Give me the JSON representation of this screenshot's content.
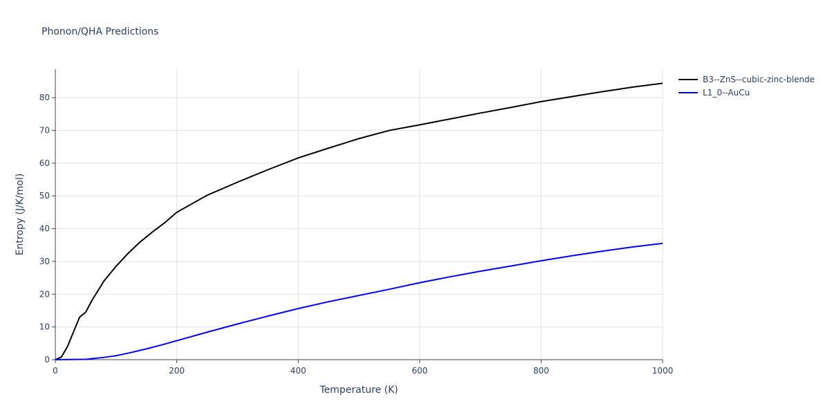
{
  "chart_data": {
    "type": "line",
    "title": "Phonon/QHA Predictions",
    "x_label": "Temperature (K)",
    "y_label": "Entropy (J/K/mol)",
    "xlim": [
      0,
      1000
    ],
    "ylim": [
      0,
      88.7
    ],
    "xticks": [
      0,
      200,
      400,
      600,
      800,
      1000
    ],
    "yticks": [
      0,
      10,
      20,
      30,
      40,
      50,
      60,
      70,
      80
    ],
    "grid": true,
    "legend": "outside-right",
    "series": [
      {
        "name": "B3--ZnS--cubic-zinc-blende",
        "color": "#000000",
        "x": [
          0,
          10,
          20,
          30,
          40,
          50,
          60,
          70,
          80,
          100,
          120,
          140,
          160,
          180,
          200,
          250,
          300,
          350,
          400,
          450,
          500,
          550,
          600,
          650,
          700,
          750,
          800,
          850,
          900,
          950,
          1000
        ],
        "values": [
          0,
          0.8,
          4,
          8.5,
          13,
          14.5,
          18,
          21,
          24,
          28.5,
          32.5,
          36,
          39,
          41.8,
          45,
          50.2,
          54.2,
          58,
          61.6,
          64.6,
          67.5,
          70,
          71.7,
          73.5,
          75.3,
          77,
          78.8,
          80.3,
          81.8,
          83.2,
          84.4
        ]
      },
      {
        "name": "L1_0--AuCu",
        "color": "#0000ff",
        "x": [
          0,
          50,
          80,
          100,
          125,
          150,
          175,
          200,
          250,
          300,
          350,
          400,
          450,
          500,
          550,
          600,
          650,
          700,
          750,
          800,
          850,
          900,
          950,
          1000
        ],
        "values": [
          0,
          0.1,
          0.7,
          1.2,
          2.2,
          3.3,
          4.5,
          5.8,
          8.4,
          10.9,
          13.3,
          15.6,
          17.7,
          19.6,
          21.5,
          23.5,
          25.3,
          27,
          28.6,
          30.2,
          31.7,
          33.1,
          34.4,
          35.5
        ]
      }
    ]
  }
}
